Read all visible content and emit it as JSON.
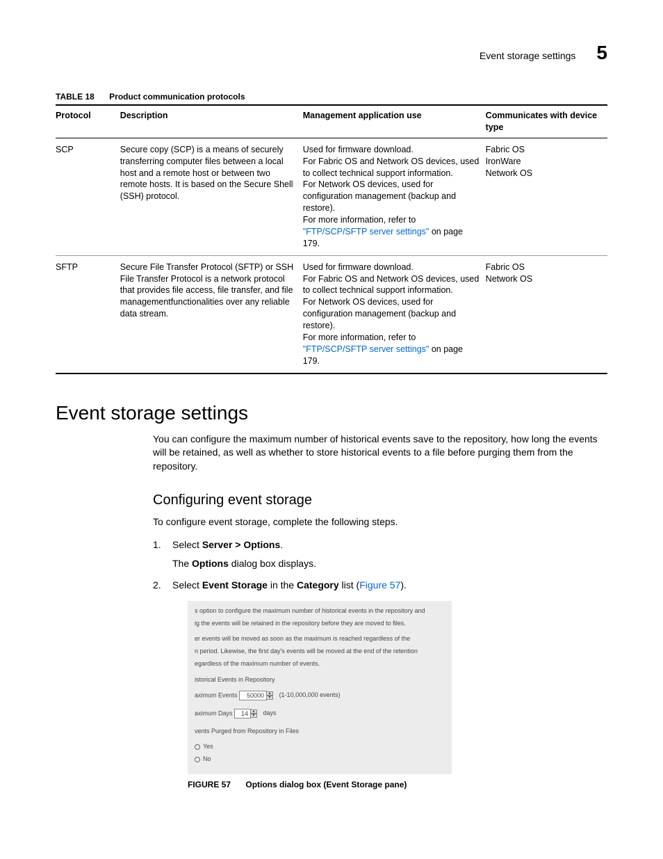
{
  "header": {
    "running_title": "Event storage settings",
    "chapter_number": "5"
  },
  "table": {
    "label_id": "TABLE 18",
    "label_caption": "Product communication protocols",
    "columns": [
      "Protocol",
      "Description",
      "Management application use",
      "Communicates with device type"
    ],
    "rows": [
      {
        "protocol": "SCP",
        "description": "Secure copy (SCP) is a means of securely transferring computer files between a local host and a remote host or between two remote hosts. It is based on the Secure Shell (SSH) protocol.",
        "mgmt_pre": "Used for firmware download.\nFor Fabric OS and Network OS devices, used to collect technical support information.\nFor Network OS devices, used for configuration management (backup and restore).\nFor more information, refer to ",
        "mgmt_link": "\"FTP/SCP/SFTP server settings\"",
        "mgmt_post": " on page 179.",
        "comm": "Fabric OS\nIronWare\nNetwork OS"
      },
      {
        "protocol": "SFTP",
        "description": "Secure File Transfer Protocol (SFTP) or SSH File Transfer Protocol is a network protocol that provides file access, file transfer, and file managementfunctionalities over any reliable data stream.",
        "mgmt_pre": "Used for firmware download.\nFor Fabric OS and Network OS devices, used to collect technical support information.\nFor Network OS devices, used for configuration management (backup and restore).\nFor more information, refer to ",
        "mgmt_link": "\"FTP/SCP/SFTP server settings\"",
        "mgmt_post": " on page 179.",
        "comm": "Fabric OS\nNetwork OS"
      }
    ]
  },
  "section": {
    "h1": "Event storage settings",
    "intro": "You can configure the maximum number of historical events save to the repository, how long the events will be retained, as well as whether to store historical events to a file before purging them from the repository.",
    "h2": "Configuring event storage",
    "lead": "To configure event storage, complete the following steps.",
    "step1_pre": "Select ",
    "step1_bold": "Server > Options",
    "step1_post": ".",
    "step1_sub_pre": "The ",
    "step1_sub_bold": "Options",
    "step1_sub_post": " dialog box displays.",
    "step2_pre": "Select ",
    "step2_b1": "Event Storage",
    "step2_mid": " in the ",
    "step2_b2": "Category",
    "step2_post1": " list (",
    "step2_link": "Figure 57",
    "step2_post2": ")."
  },
  "figure": {
    "desc_line1": "s option to configure the maximum number of historical events in the repository and",
    "desc_line2": "ig the events will be retained in the repository before they are moved to files.",
    "note_line1": "er events will be moved as soon as the maximum is reached regardless of the",
    "note_line2": "n period. Likewise, the first day's events will be moved at the end of the retention",
    "note_line3": "egardless of the maximum number of events.",
    "group1": "istorical Events in Repository",
    "max_events_label": "aximum Events",
    "max_events_value": "50000",
    "max_events_range": "(1-10,000,000 events)",
    "max_days_label": "aximum Days",
    "max_days_value": "14",
    "max_days_unit": "days",
    "group2": "vents Purged from Repository in Files",
    "radio_yes": "Yes",
    "radio_no": "No",
    "caption_id": "FIGURE 57",
    "caption_text": "Options dialog box (Event Storage pane)"
  }
}
